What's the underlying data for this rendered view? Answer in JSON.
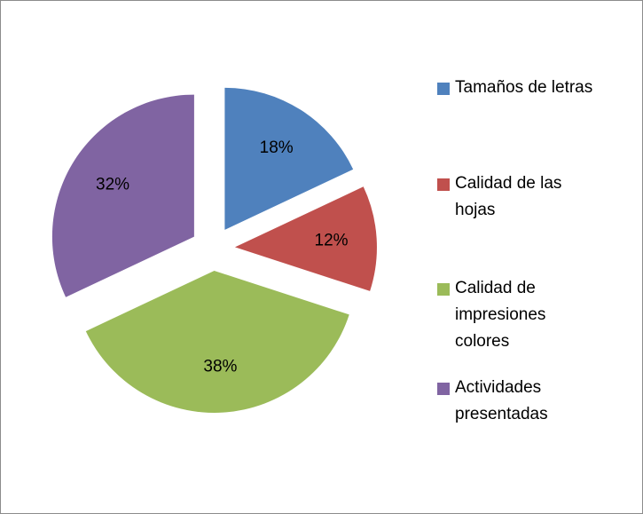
{
  "chart_data": {
    "type": "pie",
    "categories": [
      "Tamaños de letras",
      "Calidad de las hojas",
      "Calidad de impresiones colores",
      "Actividades presentadas"
    ],
    "values": [
      18,
      12,
      38,
      32
    ],
    "value_labels": [
      "18%",
      "12%",
      "38%",
      "32%"
    ],
    "colors": [
      "#4f81bd",
      "#c0504d",
      "#9bbb59",
      "#8064a2"
    ],
    "exploded": true,
    "legend": "right"
  }
}
